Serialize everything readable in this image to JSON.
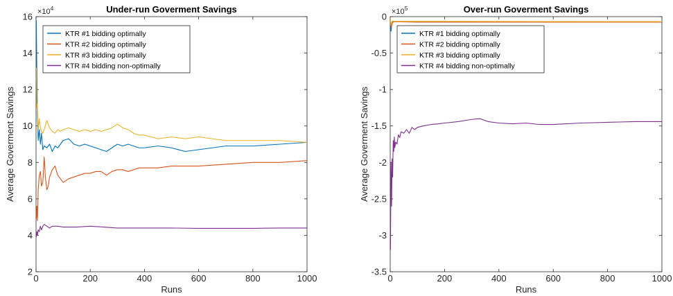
{
  "chart_data": [
    {
      "type": "line",
      "title": "Under-run Goverment Savings",
      "xlabel": "Runs",
      "ylabel": "Average Goverment Savings",
      "y_exponent_label": "×10",
      "y_exponent_power": "4",
      "xlim": [
        0,
        1000
      ],
      "ylim": [
        2,
        16
      ],
      "xticks": [
        0,
        200,
        400,
        600,
        800,
        1000
      ],
      "yticks": [
        2,
        4,
        6,
        8,
        10,
        12,
        14,
        16
      ],
      "legend_position": "top-left",
      "series": [
        {
          "name": "KTR #1 bidding optimally",
          "color": "#0072BD",
          "points": [
            [
              1,
              15.8
            ],
            [
              3,
              13
            ],
            [
              5,
              10.8
            ],
            [
              8,
              9.2
            ],
            [
              12,
              9.8
            ],
            [
              16,
              9.0
            ],
            [
              20,
              9.6
            ],
            [
              25,
              8.7
            ],
            [
              30,
              8.9
            ],
            [
              40,
              8.8
            ],
            [
              50,
              9.0
            ],
            [
              60,
              8.6
            ],
            [
              70,
              8.9
            ],
            [
              80,
              8.8
            ],
            [
              90,
              9.0
            ],
            [
              100,
              9.2
            ],
            [
              120,
              9.3
            ],
            [
              140,
              9.0
            ],
            [
              160,
              8.9
            ],
            [
              180,
              9.0
            ],
            [
              200,
              8.9
            ],
            [
              220,
              8.8
            ],
            [
              240,
              8.7
            ],
            [
              260,
              8.6
            ],
            [
              280,
              8.8
            ],
            [
              300,
              9.0
            ],
            [
              320,
              8.9
            ],
            [
              340,
              9.0
            ],
            [
              360,
              8.9
            ],
            [
              380,
              8.8
            ],
            [
              400,
              8.8
            ],
            [
              450,
              8.9
            ],
            [
              500,
              8.8
            ],
            [
              550,
              8.6
            ],
            [
              600,
              8.7
            ],
            [
              650,
              8.8
            ],
            [
              700,
              8.9
            ],
            [
              800,
              8.9
            ],
            [
              900,
              9.0
            ],
            [
              1000,
              9.1
            ]
          ]
        },
        {
          "name": "KTR #2 bidding optimally",
          "color": "#D95319",
          "points": [
            [
              1,
              4.9
            ],
            [
              3,
              5.6
            ],
            [
              5,
              4.8
            ],
            [
              8,
              6.5
            ],
            [
              12,
              7.3
            ],
            [
              16,
              7.5
            ],
            [
              20,
              6.7
            ],
            [
              25,
              6.9
            ],
            [
              30,
              8.3
            ],
            [
              35,
              7.1
            ],
            [
              40,
              6.5
            ],
            [
              45,
              6.7
            ],
            [
              50,
              7.2
            ],
            [
              60,
              7.6
            ],
            [
              70,
              7.8
            ],
            [
              80,
              7.3
            ],
            [
              90,
              7.1
            ],
            [
              100,
              6.9
            ],
            [
              120,
              7.1
            ],
            [
              140,
              7.2
            ],
            [
              160,
              7.3
            ],
            [
              180,
              7.4
            ],
            [
              200,
              7.4
            ],
            [
              220,
              7.5
            ],
            [
              240,
              7.5
            ],
            [
              260,
              7.3
            ],
            [
              280,
              7.5
            ],
            [
              300,
              7.6
            ],
            [
              320,
              7.6
            ],
            [
              340,
              7.5
            ],
            [
              360,
              7.6
            ],
            [
              380,
              7.7
            ],
            [
              400,
              7.7
            ],
            [
              450,
              7.7
            ],
            [
              500,
              7.8
            ],
            [
              550,
              7.8
            ],
            [
              600,
              7.8
            ],
            [
              700,
              7.9
            ],
            [
              800,
              8.0
            ],
            [
              900,
              8.0
            ],
            [
              1000,
              8.1
            ]
          ]
        },
        {
          "name": "KTR #3 bidding optimally",
          "color": "#EDB120",
          "points": [
            [
              1,
              13.2
            ],
            [
              3,
              11.0
            ],
            [
              5,
              11.2
            ],
            [
              8,
              9.8
            ],
            [
              12,
              10.4
            ],
            [
              16,
              9.9
            ],
            [
              20,
              9.7
            ],
            [
              25,
              9.6
            ],
            [
              30,
              9.8
            ],
            [
              40,
              10.3
            ],
            [
              50,
              9.9
            ],
            [
              60,
              9.7
            ],
            [
              70,
              9.6
            ],
            [
              80,
              9.8
            ],
            [
              90,
              9.7
            ],
            [
              100,
              9.8
            ],
            [
              120,
              9.9
            ],
            [
              140,
              9.8
            ],
            [
              160,
              9.7
            ],
            [
              180,
              9.8
            ],
            [
              200,
              9.7
            ],
            [
              220,
              9.8
            ],
            [
              240,
              9.7
            ],
            [
              260,
              9.8
            ],
            [
              280,
              9.9
            ],
            [
              300,
              10.1
            ],
            [
              320,
              9.9
            ],
            [
              340,
              9.8
            ],
            [
              360,
              9.6
            ],
            [
              380,
              9.5
            ],
            [
              400,
              9.5
            ],
            [
              450,
              9.3
            ],
            [
              500,
              9.4
            ],
            [
              550,
              9.3
            ],
            [
              600,
              9.4
            ],
            [
              650,
              9.3
            ],
            [
              700,
              9.2
            ],
            [
              800,
              9.2
            ],
            [
              900,
              9.2
            ],
            [
              1000,
              9.1
            ]
          ]
        },
        {
          "name": "KTR #4 bidding non-optimally",
          "color": "#7E2F8E",
          "points": [
            [
              1,
              3.9
            ],
            [
              3,
              4.2
            ],
            [
              5,
              4.0
            ],
            [
              8,
              4.3
            ],
            [
              12,
              4.2
            ],
            [
              16,
              4.5
            ],
            [
              20,
              4.3
            ],
            [
              25,
              4.5
            ],
            [
              30,
              4.6
            ],
            [
              40,
              4.5
            ],
            [
              50,
              4.4
            ],
            [
              60,
              4.5
            ],
            [
              80,
              4.5
            ],
            [
              100,
              4.45
            ],
            [
              150,
              4.45
            ],
            [
              200,
              4.5
            ],
            [
              250,
              4.45
            ],
            [
              300,
              4.4
            ],
            [
              400,
              4.4
            ],
            [
              500,
              4.4
            ],
            [
              600,
              4.38
            ],
            [
              700,
              4.38
            ],
            [
              800,
              4.38
            ],
            [
              900,
              4.4
            ],
            [
              1000,
              4.4
            ]
          ]
        }
      ]
    },
    {
      "type": "line",
      "title": "Over-run Goverment Savings",
      "xlabel": "Runs",
      "ylabel": "Average Goverment Savings",
      "y_exponent_label": "×10",
      "y_exponent_power": "5",
      "xlim": [
        0,
        1000
      ],
      "ylim": [
        -3.5,
        0
      ],
      "xticks": [
        0,
        200,
        400,
        600,
        800,
        1000
      ],
      "yticks": [
        -3.5,
        -3,
        -2.5,
        -2,
        -1.5,
        -1,
        -0.5,
        0
      ],
      "legend_position": "top-left",
      "series": [
        {
          "name": "KTR #1 bidding optimally",
          "color": "#0072BD",
          "points": [
            [
              0,
              -0.02
            ],
            [
              3,
              -0.2
            ],
            [
              6,
              -0.1
            ],
            [
              10,
              -0.07
            ],
            [
              50,
              -0.07
            ],
            [
              200,
              -0.07
            ],
            [
              600,
              -0.07
            ],
            [
              1000,
              -0.07
            ]
          ]
        },
        {
          "name": "KTR #2 bidding optimally",
          "color": "#D95319",
          "points": [
            [
              0,
              -0.03
            ],
            [
              4,
              -0.15
            ],
            [
              8,
              -0.08
            ],
            [
              15,
              -0.07
            ],
            [
              100,
              -0.075
            ],
            [
              500,
              -0.075
            ],
            [
              1000,
              -0.075
            ]
          ]
        },
        {
          "name": "KTR #3 bidding optimally",
          "color": "#EDB120",
          "points": [
            [
              0,
              -0.01
            ],
            [
              3,
              -0.12
            ],
            [
              7,
              -0.06
            ],
            [
              15,
              -0.065
            ],
            [
              200,
              -0.065
            ],
            [
              700,
              -0.068
            ],
            [
              1000,
              -0.068
            ]
          ]
        },
        {
          "name": "KTR #4 bidding non-optimally",
          "color": "#7E2F8E",
          "points": [
            [
              1,
              -3.2
            ],
            [
              3,
              -2.0
            ],
            [
              5,
              -2.6
            ],
            [
              7,
              -1.95
            ],
            [
              9,
              -2.2
            ],
            [
              11,
              -1.7
            ],
            [
              13,
              -1.85
            ],
            [
              15,
              -1.65
            ],
            [
              17,
              -1.8
            ],
            [
              20,
              -1.72
            ],
            [
              25,
              -1.75
            ],
            [
              30,
              -1.62
            ],
            [
              35,
              -1.66
            ],
            [
              40,
              -1.58
            ],
            [
              50,
              -1.6
            ],
            [
              60,
              -1.55
            ],
            [
              70,
              -1.6
            ],
            [
              80,
              -1.52
            ],
            [
              90,
              -1.55
            ],
            [
              100,
              -1.52
            ],
            [
              120,
              -1.5
            ],
            [
              150,
              -1.48
            ],
            [
              180,
              -1.47
            ],
            [
              200,
              -1.46
            ],
            [
              250,
              -1.44
            ],
            [
              300,
              -1.41
            ],
            [
              330,
              -1.4
            ],
            [
              360,
              -1.44
            ],
            [
              400,
              -1.46
            ],
            [
              450,
              -1.47
            ],
            [
              500,
              -1.46
            ],
            [
              550,
              -1.48
            ],
            [
              600,
              -1.48
            ],
            [
              650,
              -1.47
            ],
            [
              700,
              -1.46
            ],
            [
              800,
              -1.45
            ],
            [
              900,
              -1.44
            ],
            [
              1000,
              -1.44
            ]
          ]
        }
      ]
    }
  ]
}
